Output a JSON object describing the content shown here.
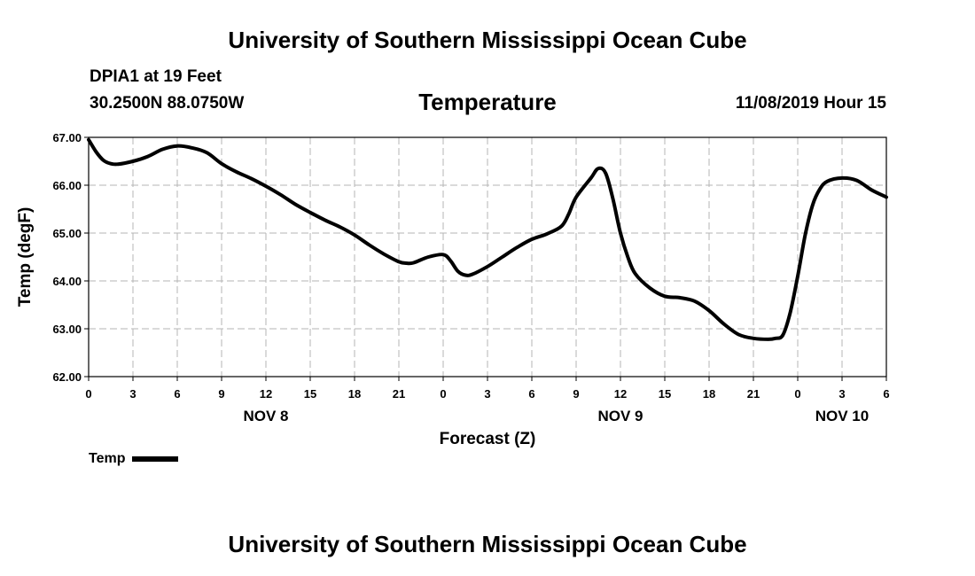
{
  "header": {
    "institution": "University of Southern Mississippi Ocean Cube",
    "station": "DPIA1 at 19 Feet",
    "coordinates": "30.2500N 88.0750W",
    "datetime": "11/08/2019 Hour 15"
  },
  "footer": {
    "institution": "University of Southern Mississippi Ocean Cube"
  },
  "legend": {
    "label": "Temp"
  },
  "chart_data": {
    "type": "line",
    "title": "Temperature",
    "xlabel": "Forecast (Z)",
    "ylabel": "Temp (degF)",
    "ylim": [
      62.0,
      67.0
    ],
    "xlim": [
      0,
      54
    ],
    "grid": true,
    "y_ticks": [
      "62.00",
      "63.00",
      "64.00",
      "65.00",
      "66.00",
      "67.00"
    ],
    "x_ticks": [
      {
        "hour": 0,
        "label": "0"
      },
      {
        "hour": 3,
        "label": "3"
      },
      {
        "hour": 6,
        "label": "6"
      },
      {
        "hour": 9,
        "label": "9"
      },
      {
        "hour": 12,
        "label": "12"
      },
      {
        "hour": 15,
        "label": "15"
      },
      {
        "hour": 18,
        "label": "18"
      },
      {
        "hour": 21,
        "label": "21"
      },
      {
        "hour": 24,
        "label": "0"
      },
      {
        "hour": 27,
        "label": "3"
      },
      {
        "hour": 30,
        "label": "6"
      },
      {
        "hour": 33,
        "label": "9"
      },
      {
        "hour": 36,
        "label": "12"
      },
      {
        "hour": 39,
        "label": "15"
      },
      {
        "hour": 42,
        "label": "18"
      },
      {
        "hour": 45,
        "label": "21"
      },
      {
        "hour": 48,
        "label": "0"
      },
      {
        "hour": 51,
        "label": "3"
      },
      {
        "hour": 54,
        "label": "6"
      }
    ],
    "date_labels": [
      {
        "hour": 12,
        "label": "NOV 8"
      },
      {
        "hour": 36,
        "label": "NOV 9"
      },
      {
        "hour": 51,
        "label": "NOV 10"
      }
    ],
    "series": [
      {
        "name": "Temp",
        "color": "#000000",
        "x": [
          0,
          0.5,
          1,
          1.5,
          2,
          3,
          4,
          5,
          6,
          7,
          8,
          9,
          10,
          11,
          12,
          13,
          14,
          15,
          16,
          17,
          18,
          19,
          20,
          21,
          21.5,
          22,
          23,
          24,
          24.5,
          25,
          25.5,
          26,
          27,
          28,
          29,
          30,
          31,
          32,
          32.5,
          33,
          34,
          34.5,
          35,
          35.5,
          36,
          36.5,
          37,
          38,
          39,
          40,
          41,
          42,
          43,
          44,
          45,
          46,
          46.5,
          47,
          47.5,
          48,
          48.5,
          49,
          49.5,
          50,
          51,
          52,
          53,
          54
        ],
        "y": [
          66.95,
          66.7,
          66.52,
          66.45,
          66.44,
          66.5,
          66.6,
          66.75,
          66.82,
          66.78,
          66.68,
          66.45,
          66.28,
          66.14,
          65.98,
          65.8,
          65.6,
          65.43,
          65.27,
          65.13,
          64.96,
          64.75,
          64.56,
          64.4,
          64.37,
          64.38,
          64.5,
          64.55,
          64.42,
          64.2,
          64.12,
          64.14,
          64.3,
          64.5,
          64.7,
          64.87,
          64.98,
          65.14,
          65.4,
          65.75,
          66.15,
          66.35,
          66.25,
          65.7,
          65.0,
          64.5,
          64.15,
          63.85,
          63.68,
          63.65,
          63.58,
          63.38,
          63.1,
          62.88,
          62.8,
          62.78,
          62.8,
          62.87,
          63.35,
          64.1,
          64.95,
          65.58,
          65.92,
          66.08,
          66.15,
          66.1,
          65.9,
          65.75
        ]
      }
    ]
  }
}
